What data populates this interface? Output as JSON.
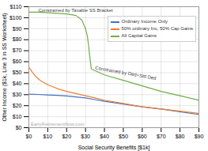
{
  "chart_data": {
    "type": "line",
    "xlabel": "Social Security Benefits [$1k]",
    "ylabel": "Other Income ($1k, Line 3 in SS Worksheet)",
    "xlim": [
      0,
      90
    ],
    "ylim": [
      0,
      110
    ],
    "xticks": [
      {
        "value": 0,
        "label": "$0"
      },
      {
        "value": 10,
        "label": "$10"
      },
      {
        "value": 20,
        "label": "$20"
      },
      {
        "value": 30,
        "label": "$30"
      },
      {
        "value": 40,
        "label": "$40"
      },
      {
        "value": 50,
        "label": "$50"
      },
      {
        "value": 60,
        "label": "$60"
      },
      {
        "value": 70,
        "label": "$70"
      },
      {
        "value": 80,
        "label": "$80"
      },
      {
        "value": 90,
        "label": "$90"
      }
    ],
    "yticks": [
      {
        "value": 0,
        "label": "$0"
      },
      {
        "value": 10,
        "label": "$10"
      },
      {
        "value": 20,
        "label": "$20"
      },
      {
        "value": 30,
        "label": "$30"
      },
      {
        "value": 40,
        "label": "$40"
      },
      {
        "value": 50,
        "label": "$50"
      },
      {
        "value": 60,
        "label": "$60"
      },
      {
        "value": 70,
        "label": "$70"
      },
      {
        "value": 80,
        "label": "$80"
      },
      {
        "value": 90,
        "label": "$90"
      },
      {
        "value": 100,
        "label": "$100"
      },
      {
        "value": 110,
        "label": "$110"
      }
    ],
    "grid": true,
    "legend": "upper right",
    "series": [
      {
        "name": "Ordinary Income Only",
        "color": "#4472c4",
        "x": [
          0,
          5,
          10,
          15,
          20,
          25,
          30,
          35,
          40,
          50,
          60,
          70,
          80,
          90
        ],
        "values": [
          30.5,
          30.2,
          29.8,
          29.4,
          28.8,
          28.0,
          27.0,
          25.5,
          24.0,
          21.5,
          19.0,
          17.0,
          14.5,
          12.0
        ]
      },
      {
        "name": "50% ordinary Inc, 50% Cap Gains",
        "color": "#ed7d31",
        "x": [
          0,
          2,
          4,
          6,
          8,
          10,
          13,
          16,
          20,
          25,
          30,
          35,
          40,
          50,
          60,
          70,
          80,
          90
        ],
        "values": [
          55,
          50,
          46,
          43,
          41,
          39,
          37,
          35,
          33,
          31,
          29,
          27,
          25,
          22,
          19,
          17,
          15,
          13
        ]
      },
      {
        "name": "All Capital Gains",
        "color": "#70ad47",
        "x": [
          0,
          5,
          10,
          15,
          20,
          25,
          28,
          30,
          31,
          31.5,
          32,
          32.5,
          33,
          33.5,
          40,
          50,
          60,
          70,
          80,
          90
        ],
        "values": [
          105,
          105,
          104.5,
          104,
          103.5,
          102,
          98,
          90,
          83,
          76,
          68,
          61,
          54,
          53,
          48,
          43,
          38,
          33,
          29,
          25
        ]
      }
    ],
    "annotations": [
      {
        "text": "Constrained by Taxable SS Bracket",
        "x": 5,
        "y": 103.5
      },
      {
        "text": "Constrained by Ded+Std Ded",
        "x": 35,
        "y": 51
      },
      {
        "text": "EarlyRetirementNow.com",
        "x": 1,
        "y": 1.5
      }
    ]
  }
}
